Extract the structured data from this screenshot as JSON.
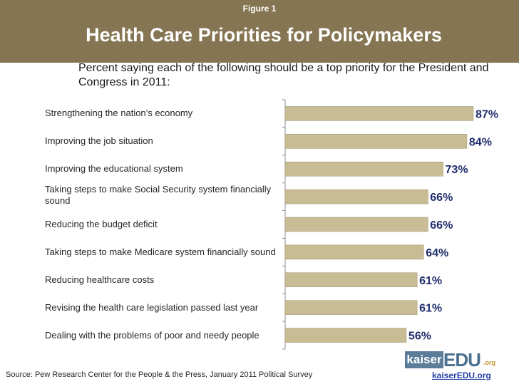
{
  "header": {
    "figure_label": "Figure 1",
    "title": "Health Care Priorities for Policymakers",
    "subtitle": "Percent saying each of the following should be a top priority for the President and Congress in 2011:"
  },
  "colors": {
    "header_bg": "#857552",
    "bar": "#C8BC95",
    "bar_stroke": "#9E9271",
    "value_label": "#1F2D6B",
    "logo_blue": "#5B7D9A"
  },
  "chart_data": {
    "type": "bar",
    "orientation": "horizontal",
    "title": "Health Care Priorities for Policymakers",
    "xlabel": "",
    "ylabel": "",
    "xlim": [
      0,
      100
    ],
    "grid": false,
    "legend": "none",
    "categories": [
      "Strengthening the nation’s economy",
      "Improving the job situation",
      "Improving the educational system",
      "Taking steps to make Social Security system financially sound",
      "Reducing the budget deficit",
      "Taking steps to make Medicare system financially sound",
      "Reducing healthcare costs",
      "Revising the health care legislation passed last year",
      "Dealing with the problems of poor and needy people"
    ],
    "values": [
      87,
      84,
      73,
      66,
      66,
      64,
      61,
      61,
      56
    ],
    "value_labels": [
      "87%",
      "84%",
      "73%",
      "66%",
      "66%",
      "64%",
      "61%",
      "61%",
      "56%"
    ]
  },
  "footer": {
    "source": "Source:  Pew Research Center for the People & the Press, January 2011 Political Survey",
    "logo_kaiser": "kaiser",
    "logo_edu": "EDU",
    "logo_org": ".org",
    "site_url": "kaiserEDU.org"
  }
}
